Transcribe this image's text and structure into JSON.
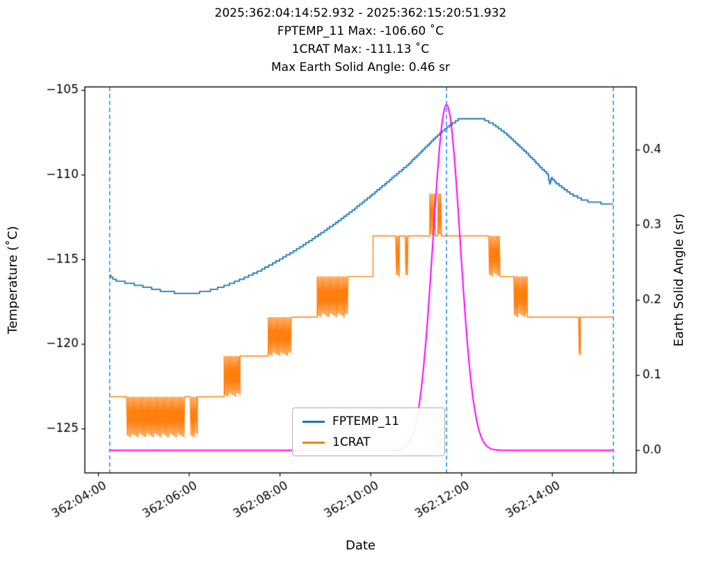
{
  "chart": {
    "title_lines": [
      "2025:362:04:14:52.932 - 2025:362:15:20:51.932",
      "FPTEMP_11 Max: -106.60 ˚C",
      "1CRAT Max: -111.13 ˚C",
      "Max Earth Solid Angle: 0.46 sr"
    ],
    "xlabel": "Date",
    "ylabel_left": "Temperature (˚C)",
    "ylabel_right": "Earth Solid Angle (sr)"
  },
  "legend": {
    "items": [
      {
        "label": "FPTEMP_11",
        "color": "#1f77b4"
      },
      {
        "label": "1CRAT",
        "color": "#ff7f0e"
      }
    ]
  },
  "chart_data": {
    "type": "line",
    "title": "2025:362:04:14:52.932 - 2025:362:15:20:51.932",
    "xlabel": "Date",
    "ylabel_left": "Temperature (˚C)",
    "ylabel_right": "Earth Solid Angle (sr)",
    "grid": false,
    "legend_position": "lower-center-left",
    "x_axis": {
      "units": "hours of day 362",
      "range": [
        3.7,
        15.85
      ],
      "ticks": [
        {
          "t": 4,
          "label": "362:04:00"
        },
        {
          "t": 6,
          "label": "362:06:00"
        },
        {
          "t": 8,
          "label": "362:08:00"
        },
        {
          "t": 10,
          "label": "362:10:00"
        },
        {
          "t": 12,
          "label": "362:12:00"
        },
        {
          "t": 14,
          "label": "362:14:00"
        }
      ]
    },
    "y_left": {
      "range": [
        -127.6,
        -104.8
      ],
      "ticks": [
        {
          "v": -105,
          "label": "−105"
        },
        {
          "v": -110,
          "label": "−110"
        },
        {
          "v": -115,
          "label": "−115"
        },
        {
          "v": -120,
          "label": "−120"
        },
        {
          "v": -125,
          "label": "−125"
        }
      ]
    },
    "y_right": {
      "range": [
        -0.03,
        0.484
      ],
      "ticks": [
        {
          "v": 0.0,
          "label": "0.0"
        },
        {
          "v": 0.1,
          "label": "0.1"
        },
        {
          "v": 0.2,
          "label": "0.2"
        },
        {
          "v": 0.3,
          "label": "0.3"
        },
        {
          "v": 0.4,
          "label": "0.4"
        }
      ]
    },
    "vlines": {
      "color": "#1e90ff",
      "style": "dashed",
      "t": [
        4.248,
        11.67,
        15.347
      ]
    },
    "series": [
      {
        "name": "FPTEMP_11",
        "color": "#1f77b4",
        "axis": "left",
        "type": "anchors",
        "quantize": 0.12,
        "max": -106.6,
        "points": [
          [
            4.248,
            -115.95
          ],
          [
            4.35,
            -116.2
          ],
          [
            4.6,
            -116.35
          ],
          [
            5.0,
            -116.6
          ],
          [
            5.4,
            -116.85
          ],
          [
            5.7,
            -116.95
          ],
          [
            6.2,
            -116.95
          ],
          [
            6.5,
            -116.8
          ],
          [
            6.8,
            -116.55
          ],
          [
            7.2,
            -116.1
          ],
          [
            7.6,
            -115.6
          ],
          [
            8.0,
            -115.0
          ],
          [
            8.4,
            -114.35
          ],
          [
            8.8,
            -113.65
          ],
          [
            9.2,
            -112.9
          ],
          [
            9.6,
            -112.1
          ],
          [
            10.0,
            -111.25
          ],
          [
            10.4,
            -110.35
          ],
          [
            10.8,
            -109.45
          ],
          [
            11.2,
            -108.4
          ],
          [
            11.5,
            -107.6
          ],
          [
            11.75,
            -107.05
          ],
          [
            11.95,
            -106.7
          ],
          [
            12.1,
            -106.65
          ],
          [
            12.45,
            -106.65
          ],
          [
            12.7,
            -107.0
          ],
          [
            13.0,
            -107.6
          ],
          [
            13.4,
            -108.6
          ],
          [
            13.8,
            -109.7
          ],
          [
            13.9,
            -109.95
          ],
          [
            13.94,
            -110.5
          ],
          [
            13.98,
            -110.15
          ],
          [
            14.1,
            -110.5
          ],
          [
            14.4,
            -111.1
          ],
          [
            14.7,
            -111.5
          ],
          [
            15.0,
            -111.65
          ],
          [
            15.347,
            -111.7
          ]
        ]
      },
      {
        "name": "1CRAT",
        "color": "#ff7f0e",
        "axis": "left",
        "type": "segments",
        "max": -111.13,
        "segments": [
          [
            4.248,
            4.62,
            "s",
            -123.1
          ],
          [
            4.62,
            5.9,
            "n",
            -123.1,
            -125.5
          ],
          [
            5.9,
            6.02,
            "s",
            -123.1
          ],
          [
            6.02,
            6.18,
            "n",
            -123.1,
            -125.5
          ],
          [
            6.18,
            6.77,
            "s",
            -123.1
          ],
          [
            6.77,
            7.12,
            "n",
            -120.7,
            -123.1
          ],
          [
            7.12,
            7.74,
            "s",
            -120.7
          ],
          [
            7.74,
            8.25,
            "n",
            -118.4,
            -120.7
          ],
          [
            8.25,
            8.82,
            "s",
            -118.4
          ],
          [
            8.82,
            9.5,
            "n",
            -116.0,
            -118.4
          ],
          [
            9.5,
            10.05,
            "s",
            -116.0
          ],
          [
            10.05,
            10.55,
            "s",
            -113.6
          ],
          [
            10.55,
            10.63,
            "n",
            -113.6,
            -116.0
          ],
          [
            10.63,
            10.76,
            "s",
            -113.6
          ],
          [
            10.76,
            10.82,
            "n",
            -113.6,
            -116.0
          ],
          [
            10.82,
            11.3,
            "s",
            -113.6
          ],
          [
            11.3,
            11.42,
            "n",
            -111.1,
            -113.6
          ],
          [
            11.42,
            11.48,
            "s",
            -113.6
          ],
          [
            11.48,
            11.56,
            "n",
            -111.1,
            -113.6
          ],
          [
            11.56,
            12.6,
            "s",
            -113.6
          ],
          [
            12.6,
            12.85,
            "n",
            -113.6,
            -116.0
          ],
          [
            12.85,
            13.15,
            "s",
            -116.0
          ],
          [
            13.15,
            13.45,
            "n",
            -116.0,
            -118.4
          ],
          [
            13.45,
            14.58,
            "s",
            -118.4
          ],
          [
            14.58,
            14.62,
            "n",
            -118.4,
            -120.7
          ],
          [
            14.62,
            15.347,
            "s",
            -118.4
          ]
        ]
      },
      {
        "name": "Earth Solid Angle",
        "color": "#ff00ff",
        "axis": "right",
        "type": "gaussian",
        "center": 11.67,
        "sigma": 0.3,
        "peak": 0.46,
        "base": 0.0,
        "trange": [
          4.248,
          15.347
        ]
      }
    ]
  }
}
